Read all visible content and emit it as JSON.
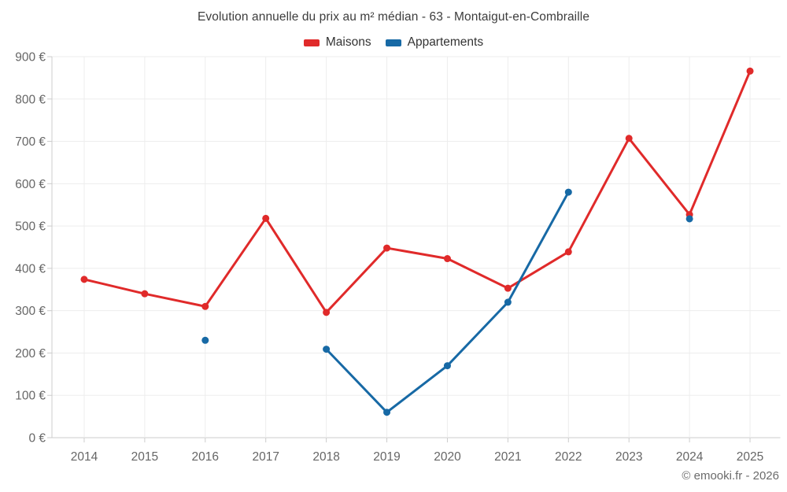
{
  "page": {
    "title": "Evolution annuelle du prix au m² médian - 63 - Montaigut-en-Combraille",
    "footer": "© emooki.fr - 2026"
  },
  "chart_data": {
    "type": "line",
    "title": "Evolution annuelle du prix au m² médian - 63 - Montaigut-en-Combraille",
    "categories": [
      "2014",
      "2015",
      "2016",
      "2017",
      "2018",
      "2019",
      "2020",
      "2021",
      "2022",
      "2023",
      "2024",
      "2025"
    ],
    "series": [
      {
        "name": "Maisons",
        "color": "#e02a2a",
        "values": [
          374,
          340,
          310,
          518,
          296,
          448,
          423,
          353,
          439,
          707,
          527,
          866
        ]
      },
      {
        "name": "Appartements",
        "color": "#1769a5",
        "values": [
          null,
          null,
          230,
          null,
          209,
          60,
          170,
          320,
          580,
          null,
          517,
          null
        ]
      }
    ],
    "xlabel": "",
    "ylabel": "",
    "ylim": [
      0,
      900
    ],
    "ytick_step": 100,
    "ytick_suffix": " €",
    "grid": true,
    "legend_position": "top",
    "colors": {
      "grid": "#ededed",
      "axis": "#cccccc",
      "tick_text": "#666666",
      "title_text": "#3d3d3d"
    }
  }
}
